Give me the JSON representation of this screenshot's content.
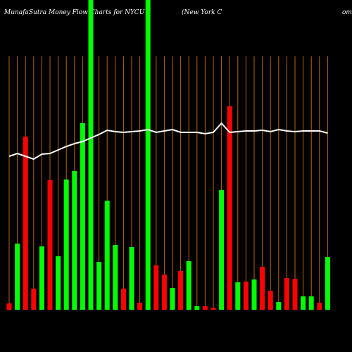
{
  "chart_data": {
    "type": "bar",
    "title": "MunafaSutra  Money Flow  Charts for NYCU",
    "subtitle": "(New  York  C",
    "subtitle_tail": "om",
    "ylim": [
      0,
      440
    ],
    "grid": true,
    "grid_color": "#b8660b",
    "values": [
      9,
      94,
      246,
      30,
      90,
      184,
      76,
      185,
      197,
      265,
      460,
      68,
      155,
      92,
      30,
      89,
      10,
      460,
      63,
      50,
      31,
      55,
      69,
      5,
      5,
      3,
      170,
      289,
      39,
      40,
      43,
      61,
      27,
      11,
      45,
      44,
      19,
      19,
      10,
      75
    ],
    "colors": [
      "#ff0000",
      "#00ff00",
      "#ff0000",
      "#ff0000",
      "#00ff00",
      "#ff0000",
      "#00ff00",
      "#00ff00",
      "#00ff00",
      "#00ff00",
      "#00ff00",
      "#00ff00",
      "#00ff00",
      "#00ff00",
      "#ff0000",
      "#00ff00",
      "#ff0000",
      "#00ff00",
      "#ff0000",
      "#ff0000",
      "#00ff00",
      "#ff0000",
      "#00ff00",
      "#00ff00",
      "#ff0000",
      "#ff0000",
      "#00ff00",
      "#ff0000",
      "#00ff00",
      "#ff0000",
      "#00ff00",
      "#ff0000",
      "#ff0000",
      "#00ff00",
      "#ff0000",
      "#ff0000",
      "#00ff00",
      "#00ff00",
      "#ff0000",
      "#00ff00"
    ],
    "line_color": "#ffffff",
    "line_values": [
      218,
      222,
      218,
      214,
      221,
      222,
      227,
      232,
      236,
      239,
      244,
      249,
      255,
      253,
      252,
      253,
      254,
      256,
      252,
      254,
      256,
      252,
      252,
      252,
      250,
      252,
      265,
      252,
      253,
      254,
      254,
      255,
      253,
      256,
      254,
      253,
      254,
      254,
      254,
      251
    ]
  }
}
